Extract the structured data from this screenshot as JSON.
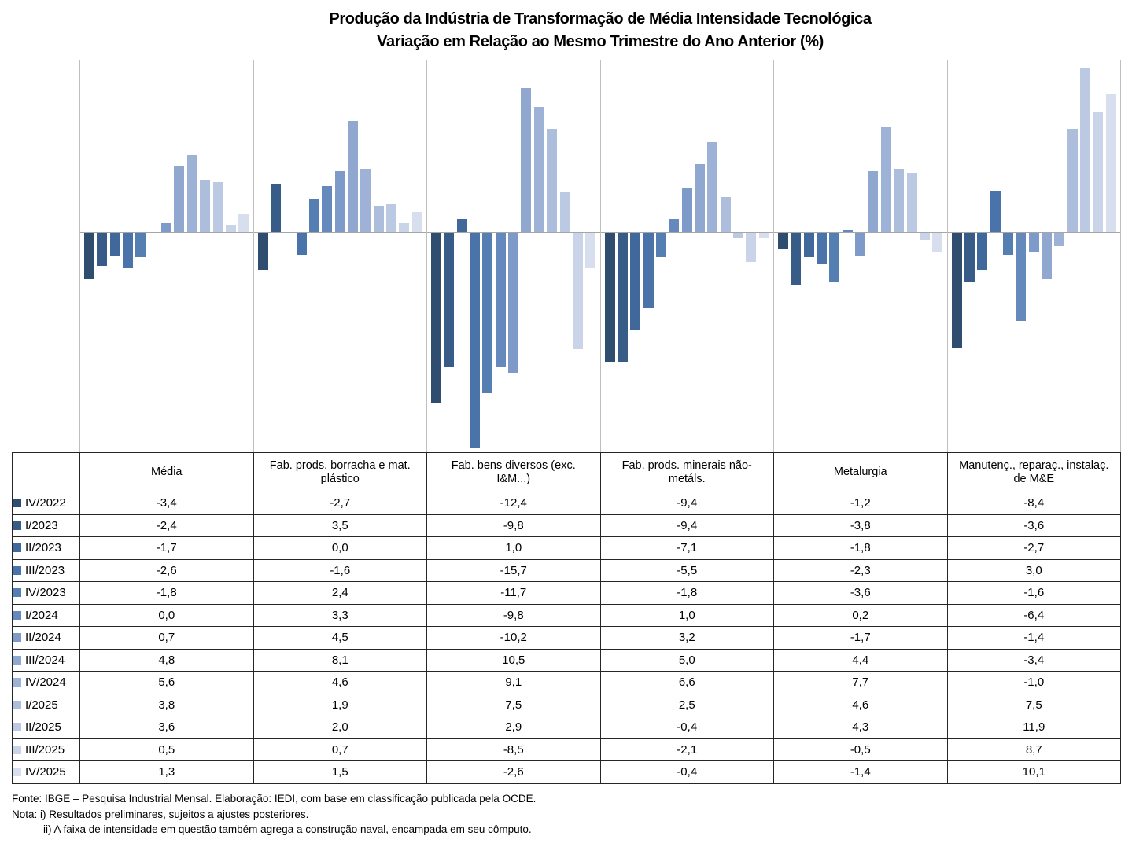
{
  "chart_data": {
    "type": "bar",
    "title": "Produção da Indústria de Transformação de Média Intensidade Tecnológica",
    "subtitle": "Variação em Relação ao Mesmo Trimestre do Ano Anterior (%)",
    "categories": [
      "Média",
      "Fab. prods. borracha e mat. plástico",
      "Fab. bens diversos (exc. I&M...)",
      "Fab. prods. minerais não-metáls.",
      "Metalurgia",
      "Manutenç., reparaç., instalaç. de M&E"
    ],
    "series": [
      {
        "name": "IV/2022",
        "color": "#2E4D6F",
        "values": [
          -3.4,
          -2.7,
          -12.4,
          -9.4,
          -1.2,
          -8.4
        ]
      },
      {
        "name": "I/2023",
        "color": "#375C88",
        "values": [
          -2.4,
          3.5,
          -9.8,
          -9.4,
          -3.8,
          -3.6
        ]
      },
      {
        "name": "II/2023",
        "color": "#41689B",
        "values": [
          -1.7,
          0.0,
          1.0,
          -7.1,
          -1.8,
          -2.7
        ]
      },
      {
        "name": "III/2023",
        "color": "#4A73A9",
        "values": [
          -2.6,
          -1.6,
          -15.7,
          -5.5,
          -2.3,
          3.0
        ]
      },
      {
        "name": "IV/2023",
        "color": "#557EB2",
        "values": [
          -1.8,
          2.4,
          -11.7,
          -1.8,
          -3.6,
          -1.6
        ]
      },
      {
        "name": "I/2024",
        "color": "#6589BD",
        "values": [
          0.0,
          3.3,
          -9.8,
          1.0,
          0.2,
          -6.4
        ]
      },
      {
        "name": "II/2024",
        "color": "#7E9AC8",
        "values": [
          0.7,
          4.5,
          -10.2,
          3.2,
          -1.7,
          -1.4
        ]
      },
      {
        "name": "III/2024",
        "color": "#90A8D0",
        "values": [
          4.8,
          8.1,
          10.5,
          5.0,
          4.4,
          -3.4
        ]
      },
      {
        "name": "IV/2024",
        "color": "#9DB2D6",
        "values": [
          5.6,
          4.6,
          9.1,
          6.6,
          7.7,
          -1.0
        ]
      },
      {
        "name": "I/2025",
        "color": "#ADBEDC",
        "values": [
          3.8,
          1.9,
          7.5,
          2.5,
          4.6,
          7.5
        ]
      },
      {
        "name": "II/2025",
        "color": "#BBC9E2",
        "values": [
          3.6,
          2.0,
          2.9,
          -0.4,
          4.3,
          11.9
        ]
      },
      {
        "name": "III/2025",
        "color": "#C9D4E8",
        "values": [
          0.5,
          0.7,
          -8.5,
          -2.1,
          -0.5,
          8.7
        ]
      },
      {
        "name": "IV/2025",
        "color": "#D7DEEE",
        "values": [
          1.3,
          1.5,
          -2.6,
          -0.4,
          -1.4,
          10.1
        ]
      }
    ],
    "ylim": [
      -16.1,
      12.6
    ],
    "grid": false,
    "panel_separators": true,
    "value_format": "decimal-comma",
    "legend_position": "table-left-column"
  },
  "table": {
    "corner_label": ""
  },
  "footer": {
    "fonte": "Fonte: IBGE – Pesquisa Industrial Mensal. Elaboração: IEDI, com base em classificação publicada pela OCDE.",
    "nota1": "Nota: i) Resultados preliminares, sujeitos a ajustes posteriores.",
    "nota2": "ii) A faixa de intensidade em questão também agrega a construção naval, encampada em seu cômputo."
  },
  "colors": {
    "zero_line": "#A6A6A6",
    "panel_separator": "#BFBFBF",
    "table_border": "#262626",
    "text": "#000000"
  }
}
